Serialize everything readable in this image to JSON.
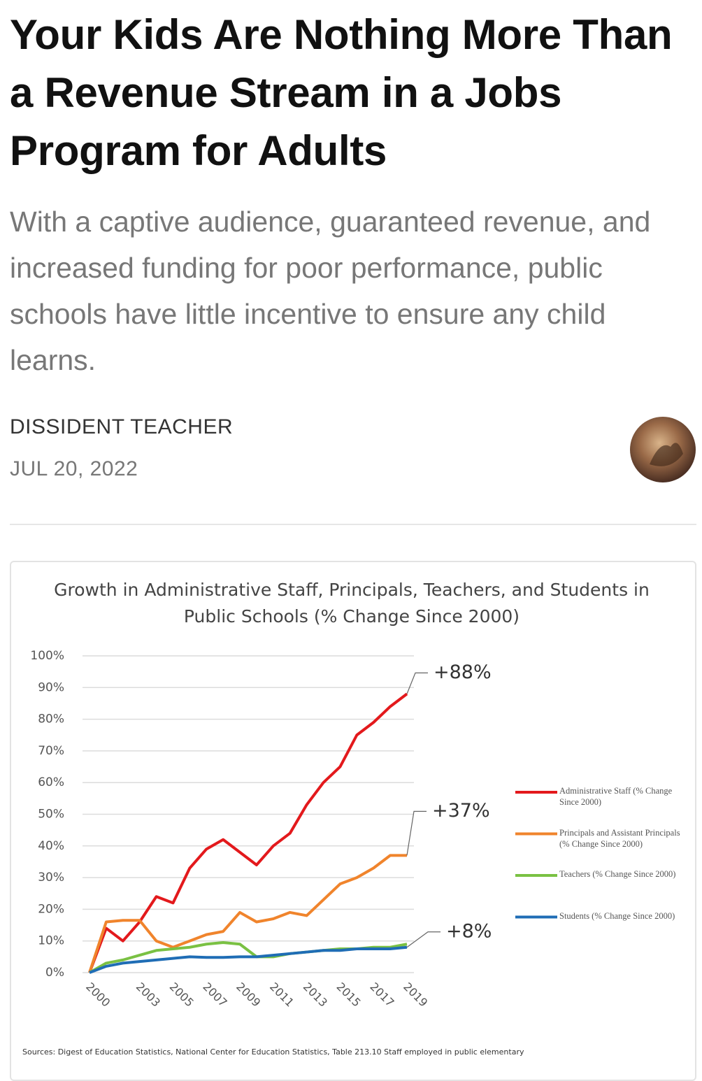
{
  "article": {
    "title": "Your Kids Are Nothing More Than a Revenue Stream in a Jobs Program for Adults",
    "subtitle": "With a captive audience, guaranteed revenue, and increased funding for poor performance, public schools have little incentive to ensure any child learns.",
    "author": "DISSIDENT TEACHER",
    "date": "JUL 20, 2022"
  },
  "chart_data": {
    "type": "line",
    "title": "Growth in Administrative Staff, Principals, Teachers, and Students in Public Schools (% Change Since 2000)",
    "x": [
      2000,
      2001,
      2002,
      2003,
      2004,
      2005,
      2006,
      2007,
      2008,
      2009,
      2010,
      2011,
      2012,
      2013,
      2014,
      2015,
      2016,
      2017,
      2018,
      2019
    ],
    "xlim": [
      2000,
      2019
    ],
    "xticks": [
      2000,
      2003,
      2005,
      2007,
      2009,
      2011,
      2013,
      2015,
      2017,
      2019
    ],
    "ylim": [
      0,
      100
    ],
    "yticks": [
      {
        "value": 0,
        "label": "0%"
      },
      {
        "value": 10,
        "label": "10%"
      },
      {
        "value": 20,
        "label": "20%"
      },
      {
        "value": 30,
        "label": "30%"
      },
      {
        "value": 40,
        "label": "40%"
      },
      {
        "value": 50,
        "label": "50%"
      },
      {
        "value": 60,
        "label": "60%"
      },
      {
        "value": 70,
        "label": "70%"
      },
      {
        "value": 80,
        "label": "80%"
      },
      {
        "value": 90,
        "label": "90%"
      },
      {
        "value": 100,
        "label": "100%"
      }
    ],
    "grid": true,
    "legend": "right",
    "series": [
      {
        "name": "Administrative Staff (% Change Since 2000)",
        "color": "#e3191c",
        "values": [
          0,
          14,
          10,
          16,
          24,
          22,
          33,
          39,
          42,
          38,
          34,
          40,
          44,
          53,
          60,
          65,
          75,
          79,
          84,
          88
        ]
      },
      {
        "name": "Principals and Assistant Principals (% Change Since 2000)",
        "color": "#f0842c",
        "values": [
          0,
          16,
          16.5,
          16.5,
          10,
          8,
          10,
          12,
          13,
          19,
          16,
          17,
          19,
          18,
          23,
          28,
          30,
          33,
          37,
          37
        ]
      },
      {
        "name": "Teachers (% Change Since 2000)",
        "color": "#7ac143",
        "values": [
          0,
          3,
          4,
          5.5,
          7,
          7.5,
          8,
          9,
          9.5,
          9,
          5,
          5,
          6,
          6.5,
          7,
          7.5,
          7.5,
          8,
          8,
          9
        ]
      },
      {
        "name": "Students (% Change Since 2000)",
        "color": "#1f6db5",
        "values": [
          0,
          2,
          3,
          3.5,
          4,
          4.5,
          5,
          4.8,
          4.8,
          5,
          5,
          5.5,
          6,
          6.5,
          7,
          7,
          7.5,
          7.5,
          7.5,
          8
        ]
      }
    ],
    "annotations": [
      {
        "text": "+88%",
        "value": 88
      },
      {
        "text": "+37%",
        "value": 37
      },
      {
        "text": "+8%",
        "value": 8
      }
    ],
    "source": "Sources: Digest of Education Statistics, National Center for Education Statistics, Table 213.10 Staff employed in public elementary"
  }
}
